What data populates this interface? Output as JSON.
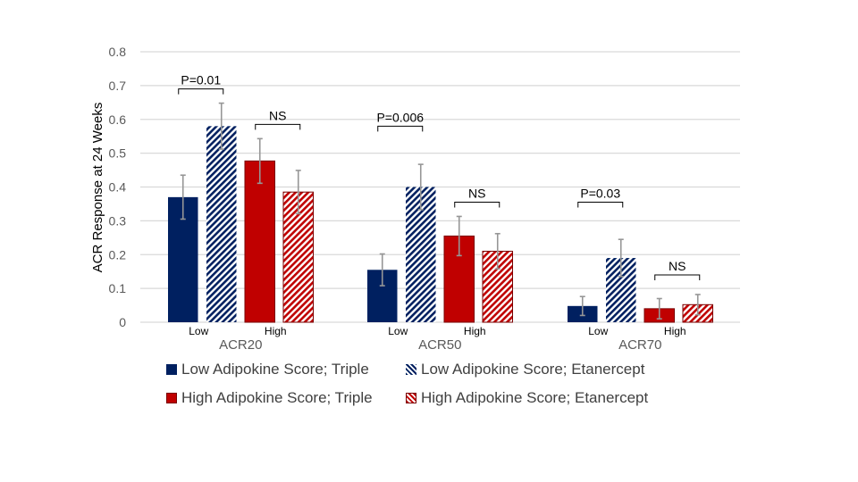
{
  "chart_data": {
    "type": "bar",
    "title": "",
    "xlabel": "",
    "ylabel": "ACR Response at 24 Weeks",
    "ylim": [
      0,
      0.8
    ],
    "yticks": [
      0,
      0.1,
      0.2,
      0.3,
      0.4,
      0.5,
      0.6,
      0.7,
      0.8
    ],
    "ytick_labels": [
      "0",
      "0.1",
      "0.2",
      "0.3",
      "0.4",
      "0.5",
      "0.6",
      "0.7",
      "0.8"
    ],
    "grid": true,
    "categories": [
      "ACR20",
      "ACR50",
      "ACR70"
    ],
    "subgroup_labels": [
      "Low",
      "High"
    ],
    "series": [
      {
        "name": "Low Adipokine Score; Triple",
        "color": "#002060",
        "pattern": "solid",
        "values": [
          0.37,
          0.155,
          0.048
        ],
        "error": [
          0.065,
          0.047,
          0.028
        ]
      },
      {
        "name": "Low Adipokine Score; Etanercept",
        "color": "#002060",
        "pattern": "hatch",
        "values": [
          0.58,
          0.4,
          0.19
        ],
        "error": [
          0.068,
          0.067,
          0.055
        ]
      },
      {
        "name": "High Adipokine Score; Triple",
        "color": "#C00000",
        "pattern": "solid",
        "values": [
          0.477,
          0.255,
          0.04
        ],
        "error": [
          0.066,
          0.058,
          0.03
        ]
      },
      {
        "name": "High Adipokine Score; Etanercept",
        "color": "#C00000",
        "pattern": "hatch",
        "values": [
          0.385,
          0.21,
          0.052
        ],
        "error": [
          0.064,
          0.052,
          0.03
        ]
      }
    ],
    "annotations": [
      {
        "category": "ACR20",
        "between": [
          0,
          1
        ],
        "text": "P=0.01",
        "level": 0.69
      },
      {
        "category": "ACR20",
        "between": [
          2,
          3
        ],
        "text": "NS",
        "level": 0.585
      },
      {
        "category": "ACR50",
        "between": [
          0,
          1
        ],
        "text": "P=0.006",
        "level": 0.58
      },
      {
        "category": "ACR50",
        "between": [
          2,
          3
        ],
        "text": "NS",
        "level": 0.355
      },
      {
        "category": "ACR70",
        "between": [
          0,
          1
        ],
        "text": "P=0.03",
        "level": 0.355
      },
      {
        "category": "ACR70",
        "between": [
          2,
          3
        ],
        "text": "NS",
        "level": 0.14
      }
    ],
    "legend_position": "bottom"
  },
  "legend": [
    {
      "label": "Low Adipokine Score; Triple"
    },
    {
      "label": "Low Adipokine Score; Etanercept"
    },
    {
      "label": "High Adipokine Score; Triple"
    },
    {
      "label": "High Adipokine Score; Etanercept"
    }
  ]
}
